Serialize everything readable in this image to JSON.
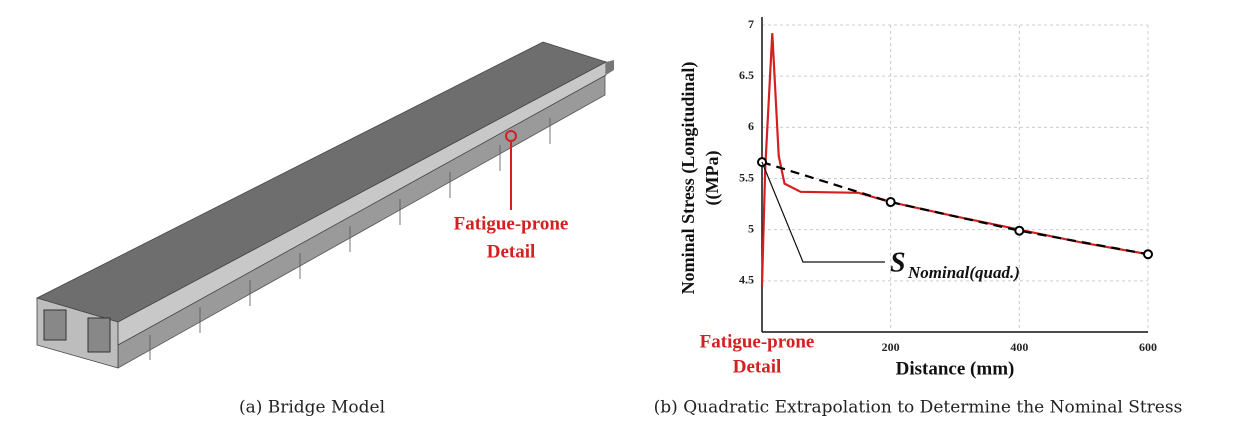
{
  "panel_a": {
    "caption": "(a) Bridge Model",
    "callout_line1": "Fatigue-prone",
    "callout_line2": "Detail"
  },
  "chart_data": {
    "type": "line",
    "caption": "(b) Quadratic Extrapolation to Determine the Nominal Stress",
    "ylabel_line1": "Nominal Stress (Longitudinal)",
    "ylabel_line2": "((MPa)",
    "xlabel": "Distance (mm)",
    "detail_label_line1": "Fatigue-prone",
    "detail_label_line2": "Detail",
    "annotation_symbol": "S",
    "annotation_subscript": "Nominal(quad.)",
    "xlim": [
      0,
      600
    ],
    "xticks": [
      200,
      400,
      600
    ],
    "ylim": [
      4,
      7
    ],
    "yticks": [
      4.5,
      5,
      5.5,
      6,
      6.5,
      7
    ],
    "grid": true,
    "series": [
      {
        "name": "stress",
        "color": "#d42020",
        "style": "solid",
        "x": [
          0,
          5,
          16,
          26,
          35,
          60,
          150,
          200,
          300,
          400,
          500,
          600
        ],
        "values": [
          4.45,
          5.6,
          6.92,
          5.72,
          5.45,
          5.37,
          5.36,
          5.27,
          5.13,
          5.0,
          4.87,
          4.76
        ]
      },
      {
        "name": "quadratic",
        "color": "#000000",
        "style": "dashed",
        "markers": true,
        "x": [
          0,
          200,
          400,
          600
        ],
        "values": [
          5.66,
          5.27,
          4.99,
          4.76
        ]
      }
    ]
  }
}
